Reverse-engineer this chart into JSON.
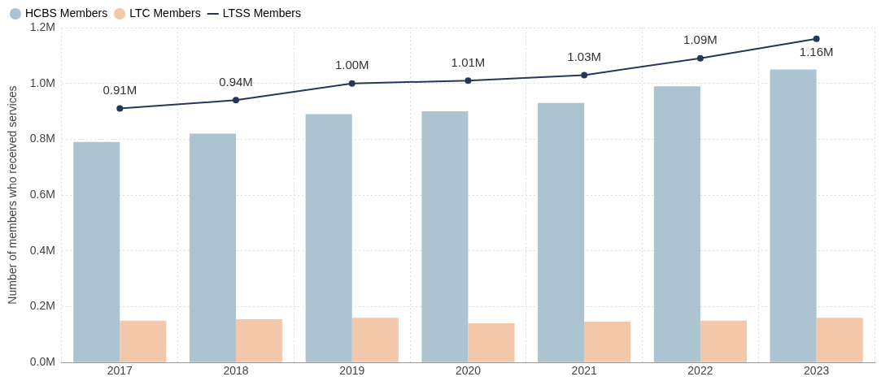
{
  "chart_data": {
    "type": "bar",
    "ylabel": "Number of members who received services",
    "categories": [
      "2017",
      "2018",
      "2019",
      "2020",
      "2021",
      "2022",
      "2023"
    ],
    "series": [
      {
        "name": "HCBS Members",
        "color": "#abc4cf",
        "values": [
          0.79,
          0.82,
          0.89,
          0.9,
          0.93,
          0.99,
          1.05
        ]
      },
      {
        "name": "LTC Members",
        "color": "#f3c7a9",
        "values": [
          0.15,
          0.155,
          0.16,
          0.14,
          0.146,
          0.15,
          0.16
        ]
      },
      {
        "name": "LTSS Members",
        "type": "line",
        "color": "#253858",
        "marker": "circle",
        "values": [
          0.91,
          0.94,
          1.0,
          1.01,
          1.03,
          1.09,
          1.16
        ],
        "value_labels": [
          "0.91M",
          "0.94M",
          "1.00M",
          "1.01M",
          "1.03M",
          "1.09M",
          "1.16M"
        ]
      }
    ],
    "ylim": [
      0,
      1.2
    ],
    "yticks": [
      {
        "value": 0,
        "label": "0.0M"
      },
      {
        "value": 0.2,
        "label": "0.2M"
      },
      {
        "value": 0.4,
        "label": "0.4M"
      },
      {
        "value": 0.6,
        "label": "0.6M"
      },
      {
        "value": 0.8,
        "label": "0.8M"
      },
      {
        "value": 1.0,
        "label": "1.0M"
      },
      {
        "value": 1.2,
        "label": "1.2M"
      }
    ],
    "grid": true,
    "legend": "top left"
  }
}
